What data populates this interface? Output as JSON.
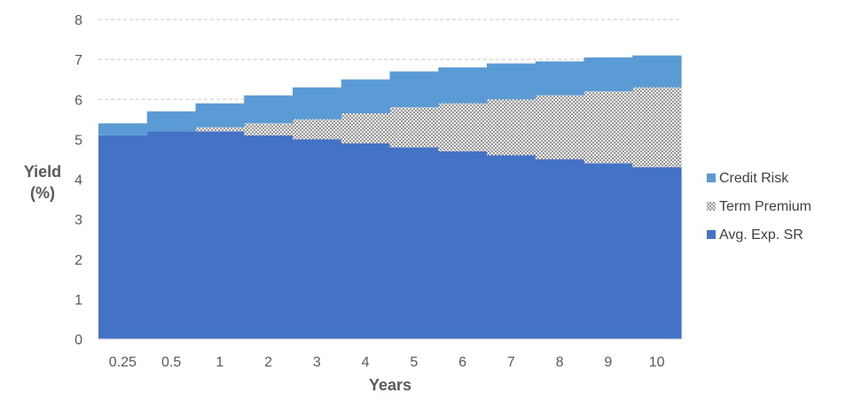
{
  "chart_data": {
    "type": "area",
    "stacked": true,
    "step": true,
    "categories": [
      "0.25",
      "0.5",
      "1",
      "2",
      "3",
      "4",
      "5",
      "6",
      "7",
      "8",
      "9",
      "10"
    ],
    "series": [
      {
        "name": "Avg. Exp. SR",
        "values": [
          5.1,
          5.2,
          5.2,
          5.1,
          5.0,
          4.9,
          4.8,
          4.7,
          4.6,
          4.5,
          4.4,
          4.3
        ],
        "color": "#4472c4"
      },
      {
        "name": "Term Premium",
        "values": [
          0.0,
          0.0,
          0.1,
          0.3,
          0.5,
          0.75,
          1.0,
          1.2,
          1.4,
          1.6,
          1.8,
          2.0
        ],
        "color": "#dcdcdc"
      },
      {
        "name": "Credit Risk",
        "values": [
          0.3,
          0.5,
          0.6,
          0.7,
          0.8,
          0.85,
          0.9,
          0.9,
          0.9,
          0.85,
          0.85,
          0.8
        ],
        "color": "#5b9bd5"
      }
    ],
    "legend_order": [
      "Credit Risk",
      "Term Premium",
      "Avg. Exp. SR"
    ],
    "xlabel": "Years",
    "ylabel_line1": "Yield",
    "ylabel_line2": "(%)",
    "ylim": [
      0,
      8
    ],
    "yticks": [
      0,
      1,
      2,
      3,
      4,
      5,
      6,
      7,
      8
    ],
    "grid": true,
    "legend_position": "right"
  }
}
